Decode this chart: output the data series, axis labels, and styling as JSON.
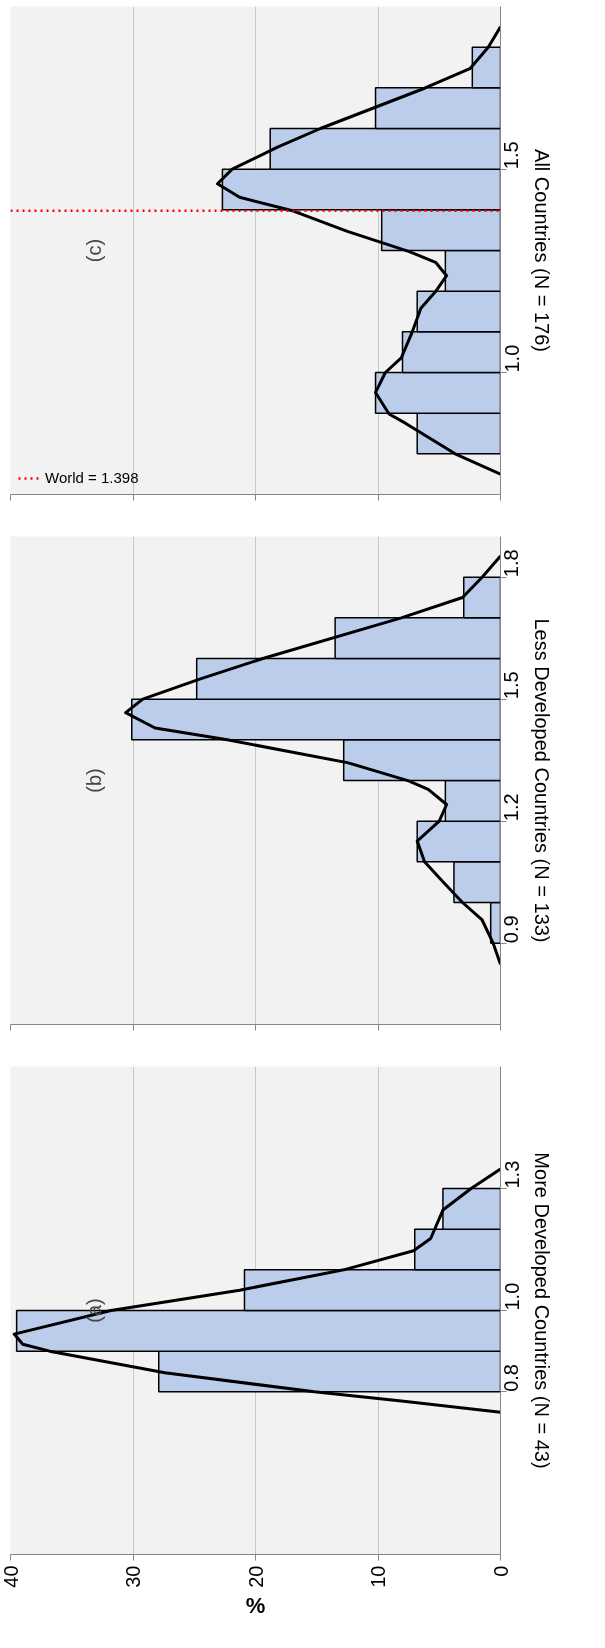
{
  "chart_data": [
    {
      "type": "histogram",
      "orientation": "horizontal",
      "ylabel": "More Developed Countries (N = 43)",
      "xlabel": "%",
      "annotations": [
        "(a)"
      ],
      "series": [
        {
          "type": "histogram",
          "bins": [
            0.8,
            0.9,
            1.0,
            1.1,
            1.2,
            1.3
          ],
          "values": [
            27.9,
            39.5,
            20.9,
            7.0,
            4.7
          ],
          "color": "#bccdec"
        },
        {
          "type": "line",
          "x": [
            0.75,
            0.777,
            0.8,
            0.847,
            0.9,
            0.917,
            0.942,
            1.0,
            1.05,
            1.1,
            1.147,
            1.177,
            1.247,
            1.3,
            1.348
          ],
          "values": [
            0,
            7.9,
            15.2,
            27.4,
            36.8,
            39.0,
            39.7,
            31.8,
            21.3,
            12.8,
            7.1,
            5.7,
            4.7,
            2.4,
            0
          ],
          "color": "#000000"
        }
      ],
      "xlim": [
        40,
        0
      ],
      "xticks": [
        40,
        30,
        20,
        10,
        0
      ],
      "ylim": [
        0.4,
        1.6
      ],
      "yticks": [
        0.8,
        {
          "value": 1.0,
          "label": "1.0"
        },
        1.3
      ],
      "grid": "x"
    },
    {
      "type": "histogram",
      "orientation": "horizontal",
      "ylabel": "Less Developed Countries (N = 133)",
      "annotations": [
        "(b)"
      ],
      "series": [
        {
          "type": "histogram",
          "bins": [
            0.9,
            1.0,
            1.1,
            1.2,
            1.3,
            1.4,
            1.5,
            1.6,
            1.7,
            1.8
          ],
          "values": [
            0.8,
            3.8,
            6.8,
            4.5,
            12.8,
            30.1,
            24.8,
            13.5,
            3.0
          ],
          "color": "#bccdec"
        },
        {
          "type": "line",
          "x": [
            0.848,
            0.9,
            0.957,
            1.0,
            1.051,
            1.1,
            1.151,
            1.2,
            1.241,
            1.278,
            1.299,
            1.344,
            1.4,
            1.429,
            1.467,
            1.5,
            1.55,
            1.6,
            1.7,
            1.75,
            1.8,
            1.852
          ],
          "values": [
            0,
            0.6,
            1.5,
            3.1,
            4.7,
            6.2,
            6.8,
            5.0,
            4.4,
            5.9,
            7.5,
            12.5,
            22.3,
            28.2,
            30.6,
            29.2,
            24.5,
            19.4,
            8.1,
            3.1,
            1.5,
            0
          ],
          "color": "#000000"
        }
      ],
      "xlim": [
        40,
        0
      ],
      "xticks": [
        40,
        30,
        20,
        10,
        0
      ],
      "ylim": [
        0.7,
        1.9
      ],
      "yticks": [
        0.9,
        1.2,
        1.5,
        1.8
      ],
      "tick_labels": "y",
      "grid": "x"
    },
    {
      "type": "histogram",
      "orientation": "horizontal",
      "ylabel": "All Countries (N = 176)",
      "annotations": [
        "(c)"
      ],
      "series": [
        {
          "type": "histogram",
          "bins": [
            0.8,
            0.9,
            1.0,
            1.1,
            1.2,
            1.3,
            1.4,
            1.5,
            1.6,
            1.7,
            1.8
          ],
          "values": [
            6.8,
            10.2,
            8.0,
            6.8,
            4.5,
            9.7,
            22.7,
            18.8,
            10.2,
            2.3
          ],
          "color": "#bccdec"
        },
        {
          "type": "line",
          "x": [
            0.75,
            0.8,
            0.876,
            0.898,
            0.951,
            1.0,
            1.036,
            1.1,
            1.158,
            1.199,
            1.238,
            1.271,
            1.298,
            1.347,
            1.397,
            1.431,
            1.464,
            1.5,
            1.554,
            1.6,
            1.699,
            1.747,
            1.8,
            1.85
          ],
          "values": [
            0,
            3.7,
            7.8,
            9.1,
            10.2,
            9.4,
            8.1,
            7.2,
            6.5,
            5.3,
            4.4,
            5.3,
            7.5,
            12.5,
            16.9,
            21.3,
            23.1,
            21.9,
            18.2,
            14.7,
            6.2,
            2.5,
            1.0,
            0
          ],
          "color": "#000000"
        }
      ],
      "ref_lines": [
        {
          "axis": "y",
          "value": 1.398,
          "label": "World = 1.398",
          "color": "#ff0000",
          "line_style": "dotted"
        }
      ],
      "xlim": [
        40,
        0
      ],
      "xticks": [
        40,
        30,
        20,
        10,
        0
      ],
      "ylim": [
        0.7,
        1.9
      ],
      "yticks": [
        {
          "value": 1.0,
          "label": "1.0"
        },
        1.5
      ],
      "tick_labels": "y",
      "grid": "x",
      "legend": "bottom left"
    }
  ]
}
